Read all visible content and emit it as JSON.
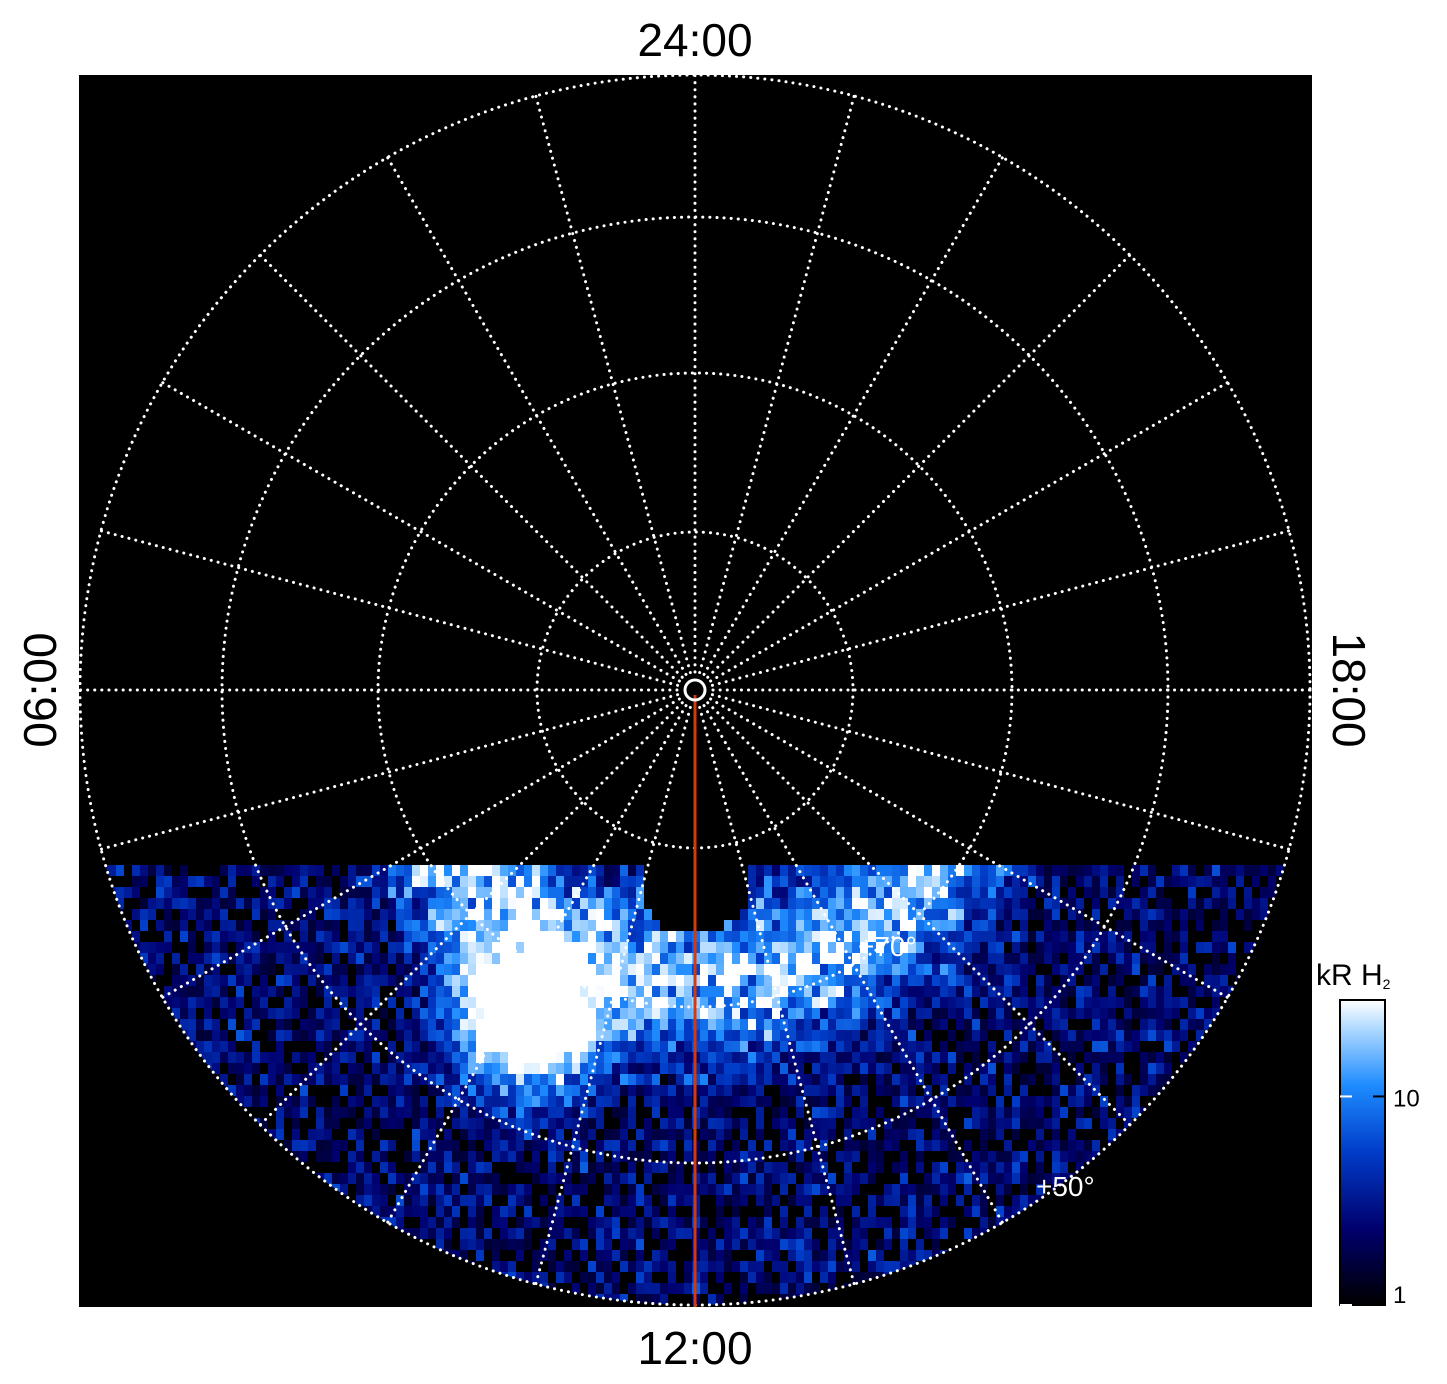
{
  "labels": {
    "top": "24:00",
    "bottom": "12:00",
    "left": "06:00",
    "right": "18:00"
  },
  "latitude_labels": [
    "+70°",
    "+50°"
  ],
  "colorbar": {
    "title": "kR H",
    "title_subscript": "2",
    "scale": "log",
    "lim": [
      1,
      29
    ],
    "ticks": [
      1,
      10
    ]
  }
}
